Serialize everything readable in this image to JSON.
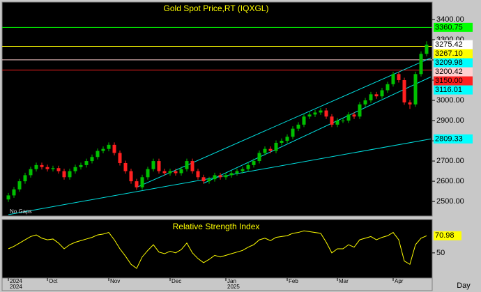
{
  "chart_data": {
    "type": "candlestick",
    "title": "Gold Spot Price,RT (IQXGL)",
    "note": "No Gaps",
    "x_label": "Day",
    "categories": [
      "2024",
      null,
      null,
      null,
      null,
      null,
      null,
      "Oct",
      null,
      null,
      null,
      null,
      null,
      null,
      null,
      null,
      null,
      null,
      "Nov",
      null,
      null,
      null,
      null,
      null,
      null,
      null,
      null,
      null,
      null,
      "Dec",
      null,
      null,
      null,
      null,
      null,
      null,
      null,
      null,
      null,
      "Jan",
      null,
      null,
      null,
      null,
      null,
      null,
      null,
      null,
      null,
      null,
      "Feb",
      null,
      null,
      null,
      null,
      null,
      null,
      null,
      null,
      "Mar",
      null,
      null,
      null,
      null,
      null,
      null,
      null,
      null,
      null,
      "Apr",
      null,
      null,
      null,
      null,
      null,
      null
    ],
    "years": [
      "2024",
      null,
      null,
      null,
      null,
      null,
      null,
      null,
      null,
      null,
      null,
      null,
      null,
      null,
      null,
      null,
      null,
      null,
      null,
      null,
      null,
      null,
      null,
      null,
      null,
      null,
      null,
      null,
      null,
      null,
      null,
      null,
      null,
      null,
      null,
      null,
      null,
      null,
      null,
      "2025",
      null,
      null,
      null,
      null,
      null,
      null,
      null,
      null,
      null,
      null,
      null,
      null,
      null,
      null,
      null,
      null,
      null,
      null,
      null,
      null,
      null,
      null,
      null,
      null,
      null,
      null,
      null,
      null,
      null,
      null,
      null,
      null,
      null,
      null,
      null,
      null
    ],
    "open": [
      2510,
      2530,
      2560,
      2600,
      2630,
      2660,
      2680,
      2670,
      2660,
      2665,
      2650,
      2620,
      2650,
      2670,
      2680,
      2700,
      2720,
      2750,
      2760,
      2780,
      2740,
      2690,
      2650,
      2600,
      2570,
      2620,
      2660,
      2700,
      2650,
      2640,
      2650,
      2640,
      2660,
      2700,
      2650,
      2620,
      2600,
      2610,
      2630,
      2620,
      2630,
      2640,
      2650,
      2660,
      2680,
      2700,
      2740,
      2760,
      2750,
      2790,
      2800,
      2820,
      2860,
      2880,
      2920,
      2930,
      2940,
      2950,
      2920,
      2880,
      2900,
      2900,
      2930,
      2920,
      2980,
      3000,
      3030,
      3020,
      3050,
      3080,
      3130,
      3100,
      2990,
      2980,
      3130,
      3230
    ],
    "high": [
      2542,
      2572,
      2612,
      2642,
      2672,
      2692,
      2692,
      2682,
      2677,
      2677,
      2662,
      2662,
      2682,
      2692,
      2712,
      2732,
      2762,
      2772,
      2792,
      2792,
      2752,
      2702,
      2662,
      2612,
      2632,
      2672,
      2712,
      2712,
      2662,
      2662,
      2662,
      2672,
      2712,
      2712,
      2662,
      2632,
      2622,
      2642,
      2642,
      2642,
      2652,
      2662,
      2672,
      2692,
      2712,
      2752,
      2772,
      2772,
      2802,
      2812,
      2832,
      2872,
      2892,
      2932,
      2942,
      2952,
      2962,
      2962,
      2932,
      2912,
      2912,
      2942,
      2942,
      2992,
      3012,
      3042,
      3042,
      3062,
      3092,
      3142,
      3142,
      3112,
      3002,
      3142,
      3242,
      3292
    ],
    "low": [
      2498,
      2518,
      2548,
      2588,
      2618,
      2648,
      2658,
      2648,
      2648,
      2638,
      2608,
      2608,
      2638,
      2658,
      2668,
      2688,
      2708,
      2738,
      2748,
      2728,
      2678,
      2638,
      2588,
      2558,
      2558,
      2608,
      2648,
      2638,
      2628,
      2628,
      2628,
      2628,
      2648,
      2638,
      2608,
      2588,
      2588,
      2598,
      2608,
      2608,
      2618,
      2628,
      2638,
      2648,
      2668,
      2688,
      2728,
      2738,
      2738,
      2778,
      2788,
      2808,
      2848,
      2868,
      2908,
      2918,
      2928,
      2908,
      2868,
      2868,
      2888,
      2888,
      2908,
      2908,
      2968,
      2988,
      3008,
      3008,
      3038,
      3068,
      3088,
      2978,
      2958,
      2968,
      3118,
      3218
    ],
    "close": [
      2530,
      2560,
      2600,
      2630,
      2660,
      2680,
      2670,
      2660,
      2665,
      2650,
      2620,
      2650,
      2670,
      2680,
      2700,
      2720,
      2750,
      2760,
      2780,
      2740,
      2690,
      2650,
      2600,
      2570,
      2620,
      2660,
      2700,
      2650,
      2640,
      2650,
      2640,
      2660,
      2700,
      2650,
      2620,
      2600,
      2610,
      2630,
      2620,
      2630,
      2640,
      2650,
      2660,
      2680,
      2700,
      2740,
      2760,
      2750,
      2790,
      2800,
      2820,
      2860,
      2880,
      2920,
      2930,
      2940,
      2950,
      2920,
      2880,
      2900,
      2900,
      2930,
      2920,
      2980,
      3000,
      3030,
      3020,
      3050,
      3080,
      3130,
      3100,
      2990,
      2980,
      3130,
      3230,
      3275.42
    ],
    "up_color": "#00c000",
    "down_color": "#ff2020",
    "ylim": [
      2428,
      3486
    ],
    "yticks": [
      {
        "value": 2500,
        "label": "2500.00"
      },
      {
        "value": 2600,
        "label": "2600.00"
      },
      {
        "value": 2700,
        "label": "2700.00"
      },
      {
        "value": 2800,
        "label": "2800.00"
      },
      {
        "value": 2900,
        "label": "2900.00"
      },
      {
        "value": 3000,
        "label": "3000.00"
      },
      {
        "value": 3100,
        "label": "3100.00"
      },
      {
        "value": 3200,
        "label": "3200.00"
      },
      {
        "value": 3300,
        "label": "3300.00"
      },
      {
        "value": 3400,
        "label": "3400.00"
      }
    ],
    "levels": [
      {
        "value": 3360.75,
        "color": "#00ff00",
        "line": true
      },
      {
        "value": 3275.42,
        "color": "#ffffff",
        "line": false
      },
      {
        "value": {
          "value": 3267.1,
          "label": "3267.10"
        },
        "color": "#ffff00",
        "line": true
      },
      {
        "value": 3209.98,
        "color": "#00ffff",
        "line": false
      },
      {
        "value": 3200.42,
        "color": "#ffd0d0",
        "line": true
      },
      {
        "value": {
          "value": 3150,
          "label": "3150.00"
        },
        "color": "#ff2020",
        "line": true
      },
      {
        "value": 3116.01,
        "color": "#00ffff",
        "line": false
      },
      {
        "value": 2809.33,
        "color": "#00ffff",
        "line": false
      }
    ],
    "trendlines": [
      {
        "start_index": 0,
        "start_value": 2435,
        "end_value": 2809.33,
        "color": "#00e0e0"
      },
      {
        "start_index": 23,
        "start_value": 2570,
        "end_value": 3209.98,
        "color": "#00e0e0"
      },
      {
        "start_index": 35,
        "start_value": 2590,
        "end_value": 3116.01,
        "color": "#00e0e0"
      }
    ],
    "rsi": {
      "title": "Relative Strength Index",
      "color": "#ffff00",
      "ylim": [
        20,
        90
      ],
      "yticks": [
        50
      ],
      "values": [
        55,
        58,
        62,
        66,
        70,
        72,
        68,
        66,
        67,
        62,
        55,
        60,
        63,
        65,
        67,
        69,
        72,
        73,
        75,
        66,
        55,
        46,
        36,
        31,
        45,
        53,
        60,
        51,
        49,
        52,
        50,
        54,
        62,
        50,
        43,
        38,
        42,
        47,
        45,
        47,
        49,
        51,
        53,
        57,
        60,
        66,
        68,
        65,
        69,
        70,
        71,
        74,
        75,
        77,
        76,
        75,
        74,
        63,
        50,
        55,
        55,
        60,
        57,
        66,
        68,
        70,
        66,
        69,
        71,
        75,
        66,
        40,
        36,
        60,
        68,
        70.98
      ]
    }
  }
}
